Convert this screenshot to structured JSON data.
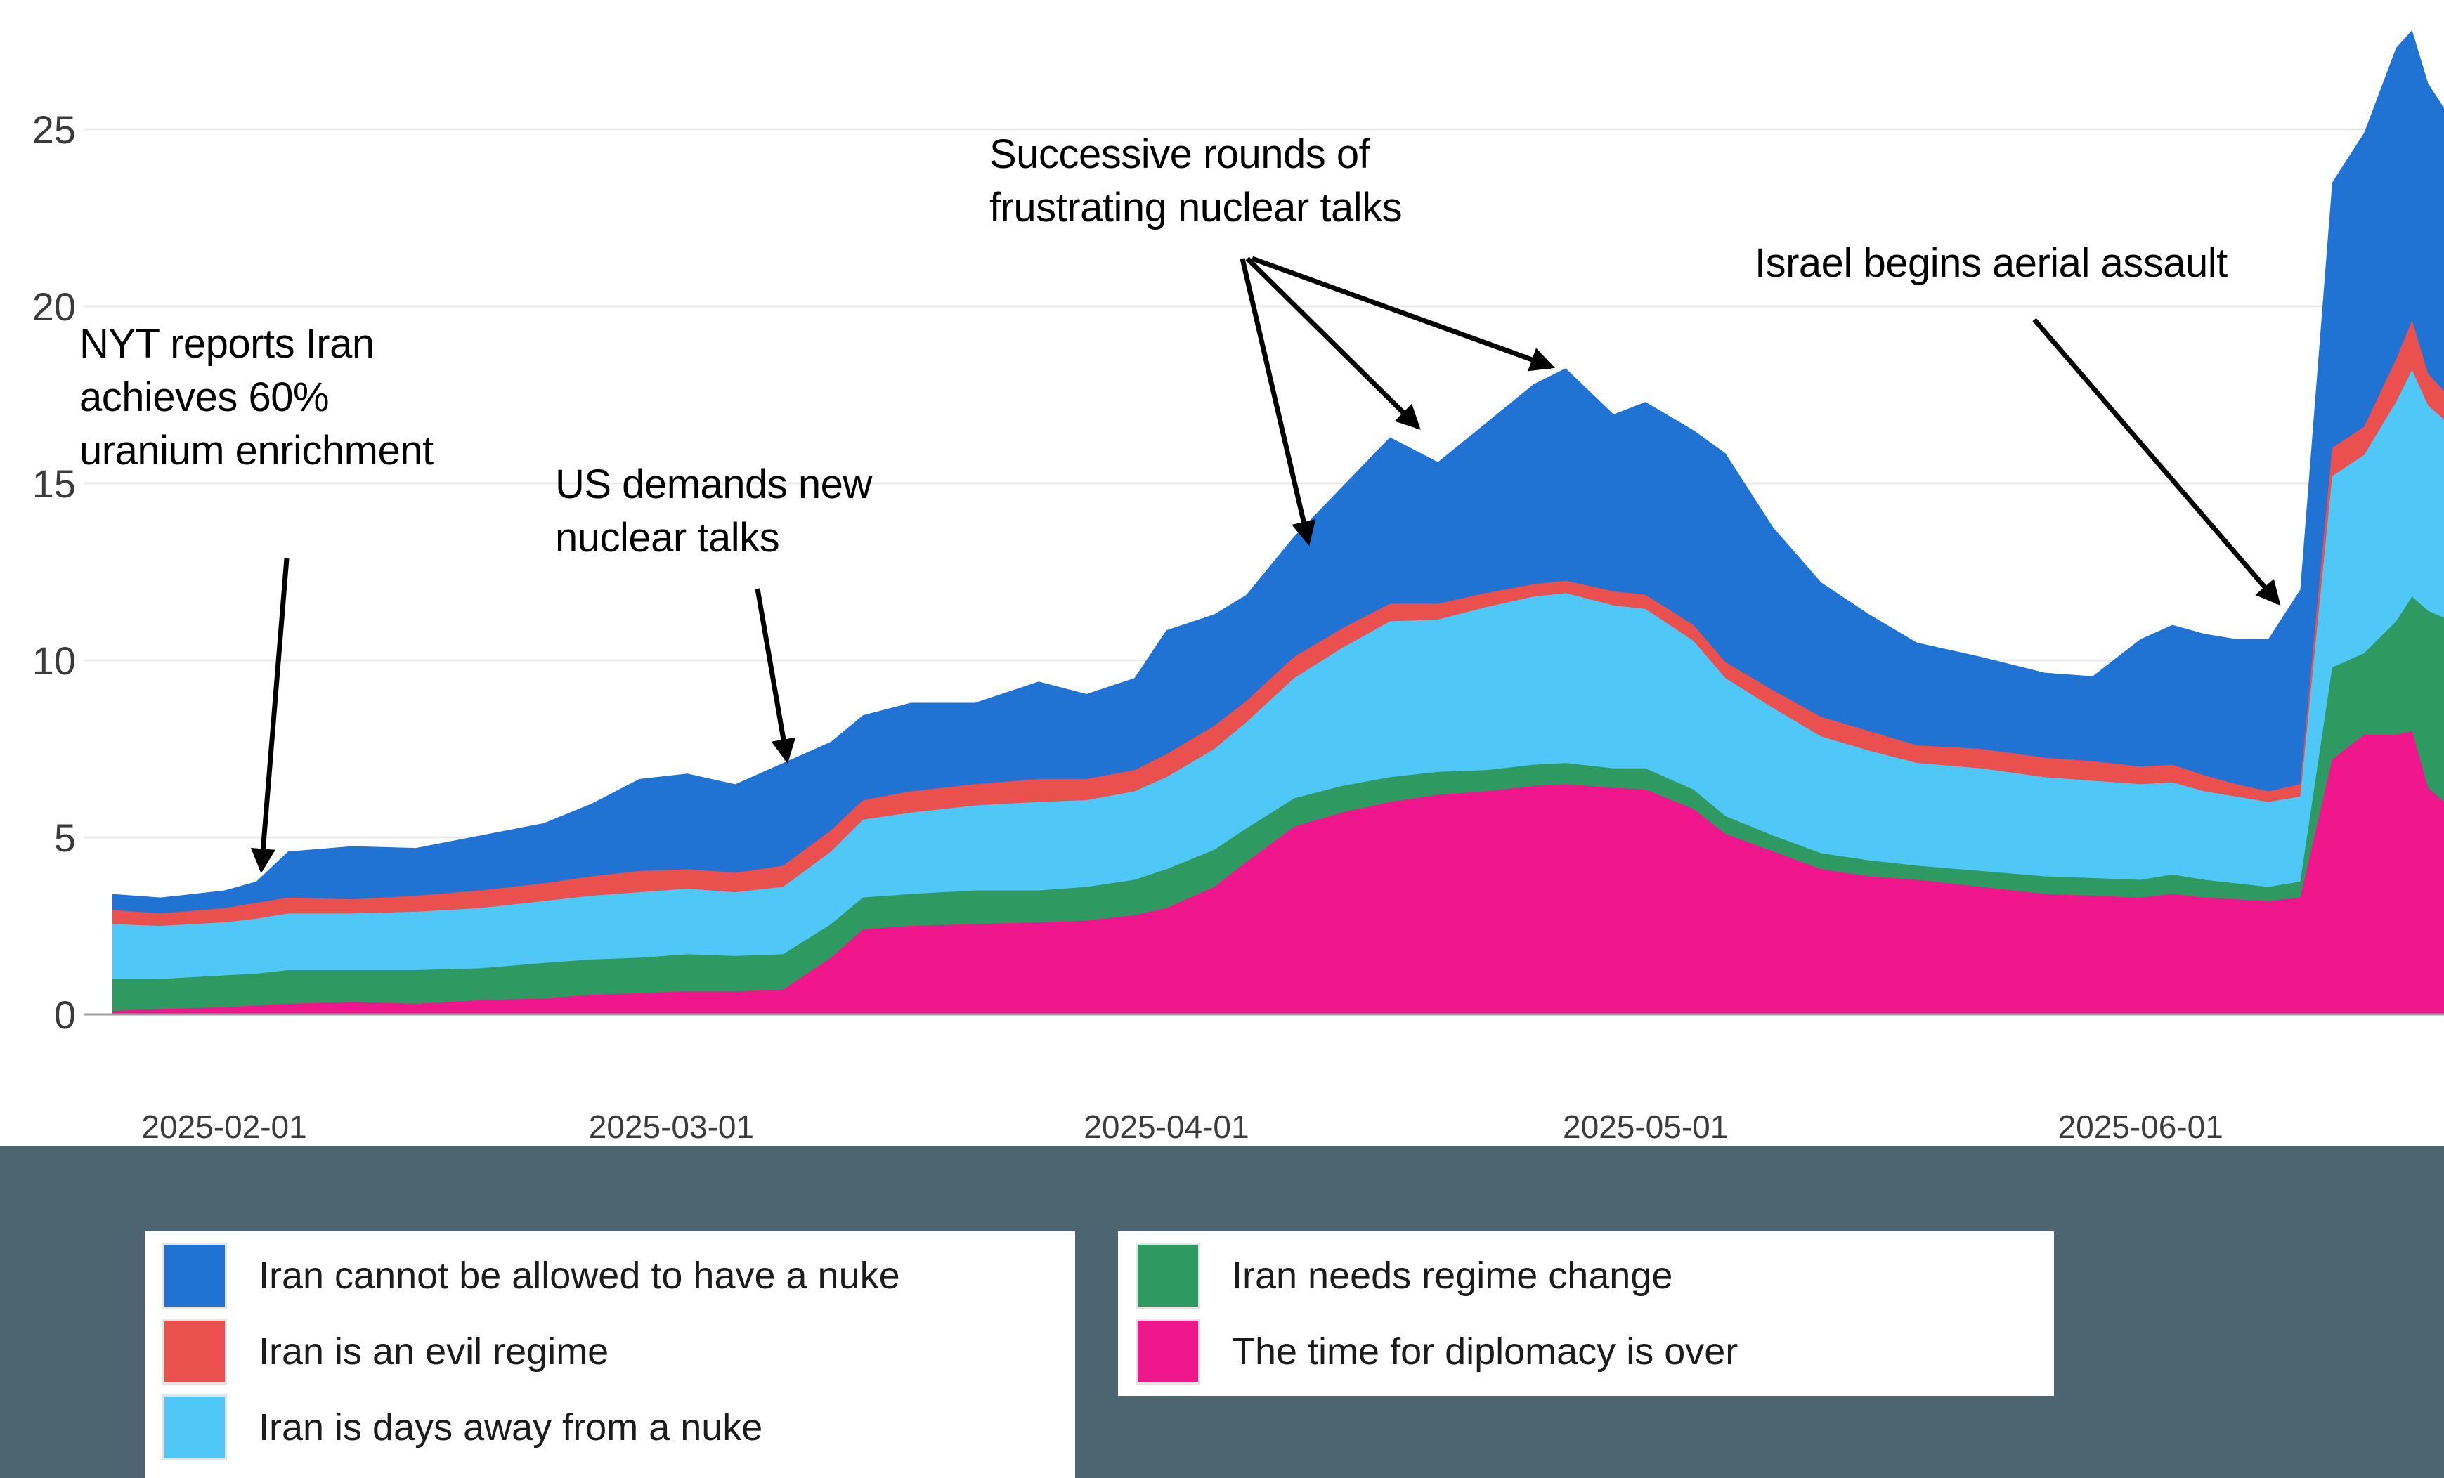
{
  "chart_data": {
    "type": "area",
    "stacked": true,
    "title": "",
    "xlabel": "",
    "ylabel": "",
    "x_unit": "days since 2025-01-25",
    "x": [
      0,
      3,
      7,
      9,
      11,
      15,
      19,
      23,
      27,
      30,
      33,
      36,
      39,
      42,
      45,
      47,
      50,
      54,
      58,
      61,
      64,
      66,
      69,
      71,
      74,
      77,
      80,
      83,
      86,
      89,
      91,
      94,
      96,
      99,
      101,
      104,
      107,
      110,
      113,
      117,
      121,
      124,
      127,
      129,
      131,
      133,
      135,
      137,
      139,
      141,
      143,
      144,
      145,
      146
    ],
    "series": [
      {
        "name": "The time for diplomacy is over",
        "color": "#F0168C",
        "values": [
          0.1,
          0.15,
          0.2,
          0.25,
          0.3,
          0.35,
          0.3,
          0.4,
          0.45,
          0.55,
          0.6,
          0.65,
          0.65,
          0.7,
          1.6,
          2.4,
          2.5,
          2.55,
          2.6,
          2.65,
          2.8,
          3.0,
          3.6,
          4.3,
          5.3,
          5.7,
          6.0,
          6.2,
          6.3,
          6.45,
          6.5,
          6.4,
          6.35,
          5.8,
          5.1,
          4.6,
          4.1,
          3.9,
          3.8,
          3.6,
          3.4,
          3.35,
          3.3,
          3.4,
          3.3,
          3.25,
          3.2,
          3.3,
          7.2,
          7.9,
          7.9,
          8.0,
          6.4,
          6.0
        ]
      },
      {
        "name": "Iran needs regime change",
        "color": "#2E9960",
        "values": [
          0.9,
          0.85,
          0.9,
          0.9,
          0.95,
          0.9,
          0.95,
          0.9,
          1.0,
          1.0,
          1.0,
          1.05,
          1.0,
          1.0,
          0.95,
          0.9,
          0.9,
          0.95,
          0.9,
          0.95,
          1.0,
          1.1,
          1.05,
          0.95,
          0.8,
          0.75,
          0.7,
          0.65,
          0.6,
          0.6,
          0.6,
          0.55,
          0.6,
          0.55,
          0.5,
          0.45,
          0.45,
          0.45,
          0.4,
          0.45,
          0.5,
          0.5,
          0.5,
          0.55,
          0.5,
          0.45,
          0.4,
          0.45,
          2.6,
          2.3,
          3.2,
          3.8,
          5.0,
          5.2
        ]
      },
      {
        "name": "Iran is days away from a nuke",
        "color": "#4FC8F8",
        "values": [
          1.55,
          1.5,
          1.5,
          1.55,
          1.6,
          1.6,
          1.65,
          1.7,
          1.75,
          1.8,
          1.85,
          1.85,
          1.8,
          1.9,
          2.05,
          2.2,
          2.3,
          2.4,
          2.5,
          2.45,
          2.5,
          2.6,
          2.85,
          3.0,
          3.4,
          3.9,
          4.4,
          4.3,
          4.6,
          4.75,
          4.8,
          4.6,
          4.5,
          4.2,
          3.9,
          3.6,
          3.3,
          3.1,
          2.9,
          2.9,
          2.8,
          2.75,
          2.7,
          2.6,
          2.5,
          2.45,
          2.4,
          2.4,
          5.4,
          5.6,
          6.2,
          6.4,
          5.8,
          5.6
        ]
      },
      {
        "name": "Iran is an evil regime",
        "color": "#E9504E",
        "values": [
          0.4,
          0.35,
          0.4,
          0.45,
          0.45,
          0.4,
          0.45,
          0.5,
          0.5,
          0.55,
          0.6,
          0.55,
          0.55,
          0.6,
          0.6,
          0.55,
          0.6,
          0.6,
          0.65,
          0.6,
          0.6,
          0.65,
          0.65,
          0.6,
          0.6,
          0.55,
          0.5,
          0.45,
          0.4,
          0.35,
          0.35,
          0.4,
          0.4,
          0.45,
          0.45,
          0.5,
          0.55,
          0.55,
          0.5,
          0.55,
          0.55,
          0.55,
          0.5,
          0.5,
          0.45,
          0.35,
          0.3,
          0.35,
          0.8,
          0.8,
          1.2,
          1.4,
          0.9,
          0.8
        ]
      },
      {
        "name": "Iran cannot be allowed to have a nuke",
        "color": "#2173D3",
        "values": [
          0.45,
          0.45,
          0.5,
          0.6,
          1.3,
          1.5,
          1.35,
          1.55,
          1.7,
          2.05,
          2.6,
          2.7,
          2.5,
          2.9,
          2.5,
          2.4,
          2.5,
          2.3,
          2.75,
          2.4,
          2.6,
          3.5,
          3.15,
          3.0,
          3.4,
          4.0,
          4.7,
          4.0,
          4.8,
          5.65,
          6.0,
          5.0,
          5.45,
          5.5,
          5.9,
          4.6,
          3.8,
          3.3,
          2.9,
          2.6,
          2.4,
          2.4,
          3.6,
          3.95,
          4.0,
          4.1,
          4.3,
          5.5,
          7.5,
          8.3,
          8.8,
          8.2,
          8.2,
          8.0
        ]
      }
    ],
    "yticks": [
      0,
      5,
      10,
      15,
      20,
      25
    ],
    "ylim": [
      0,
      28.7
    ],
    "xticks": [
      {
        "label": "2025-02-01",
        "day": 7
      },
      {
        "label": "2025-03-01",
        "day": 35
      },
      {
        "label": "2025-04-01",
        "day": 66
      },
      {
        "label": "2025-05-01",
        "day": 96
      },
      {
        "label": "2025-06-01",
        "day": 127
      }
    ],
    "grid": true,
    "legend_position": "bottom"
  },
  "annotations": [
    {
      "id": "nyt-60-percent",
      "lines": [
        "NYT reports Iran",
        "achieves 60%",
        "uranium enrichment"
      ]
    },
    {
      "id": "us-demands-talks",
      "lines": [
        "US demands new",
        "nuclear talks"
      ]
    },
    {
      "id": "frustrating-talks",
      "lines": [
        "Successive rounds of",
        "frustrating nuclear talks"
      ]
    },
    {
      "id": "israel-assault",
      "lines": [
        "Israel begins aerial assault"
      ]
    }
  ],
  "legend": {
    "left": [
      {
        "label": "Iran cannot be allowed to have a nuke",
        "color": "#2173D3"
      },
      {
        "label": "Iran is an evil regime",
        "color": "#E9504E"
      },
      {
        "label": "Iran is days away from a nuke",
        "color": "#4FC8F8"
      }
    ],
    "right": [
      {
        "label": "Iran needs regime change",
        "color": "#2E9960"
      },
      {
        "label": "The time for diplomacy is over",
        "color": "#F0168C"
      }
    ]
  },
  "footer_band_color": "#4C6570"
}
